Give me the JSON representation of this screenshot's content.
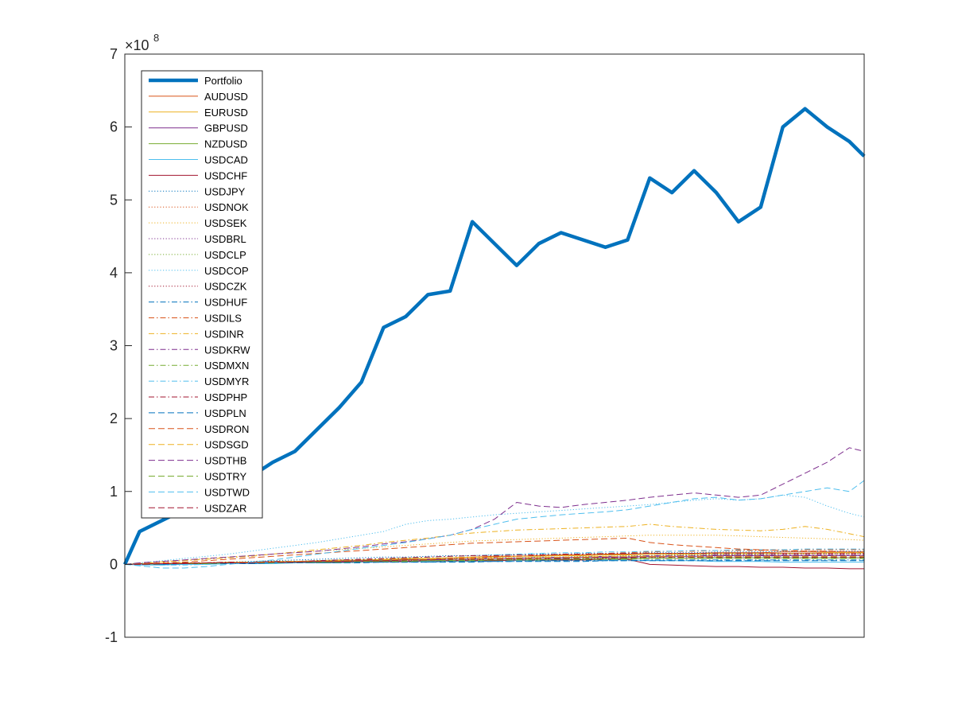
{
  "chart_data": {
    "type": "line",
    "title": "",
    "xlabel": "",
    "ylabel": "",
    "y_scale_exponent_label": "×10",
    "y_scale_exponent": "8",
    "ylim": [
      -100000000,
      700000000
    ],
    "xlim": [
      0,
      100
    ],
    "y_ticks": [
      {
        "value": -100000000,
        "label": "-1"
      },
      {
        "value": 0,
        "label": "0"
      },
      {
        "value": 100000000,
        "label": "1"
      },
      {
        "value": 200000000,
        "label": "2"
      },
      {
        "value": 300000000,
        "label": "3"
      },
      {
        "value": 400000000,
        "label": "4"
      },
      {
        "value": 500000000,
        "label": "5"
      },
      {
        "value": 600000000,
        "label": "6"
      },
      {
        "value": 700000000,
        "label": "7"
      }
    ],
    "grid": false,
    "legend_position": "top-left",
    "x": [
      0,
      2,
      5,
      8,
      11,
      14,
      17,
      20,
      23,
      26,
      29,
      32,
      35,
      38,
      41,
      44,
      47,
      50,
      53,
      56,
      59,
      62,
      65,
      68,
      71,
      74,
      77,
      80,
      83,
      86,
      89,
      92,
      95,
      98,
      100
    ],
    "series": [
      {
        "name": "Portfolio",
        "color": "#0072BD",
        "style": "solid",
        "width": 4.5,
        "values": [
          0,
          45,
          60,
          75,
          95,
          110,
          120,
          140,
          155,
          185,
          215,
          250,
          325,
          340,
          370,
          375,
          470,
          440,
          410,
          440,
          455,
          445,
          435,
          445,
          530,
          510,
          540,
          510,
          470,
          490,
          600,
          625,
          600,
          580,
          560
        ]
      },
      {
        "name": "AUDUSD",
        "color": "#D95319",
        "style": "solid",
        "width": 1,
        "values": [
          0,
          0,
          1,
          1,
          2,
          2,
          3,
          3,
          4,
          4,
          5,
          6,
          6,
          7,
          8,
          9,
          10,
          11,
          11,
          12,
          13,
          13,
          14,
          14,
          15,
          15,
          15,
          16,
          16,
          16,
          17,
          17,
          17,
          17,
          17
        ]
      },
      {
        "name": "EURUSD",
        "color": "#EDB120",
        "style": "solid",
        "width": 1,
        "values": [
          0,
          1,
          1,
          2,
          2,
          3,
          3,
          4,
          4,
          5,
          6,
          6,
          7,
          8,
          8,
          9,
          10,
          10,
          11,
          11,
          12,
          12,
          13,
          13,
          14,
          14,
          14,
          15,
          15,
          15,
          15,
          15,
          16,
          16,
          16
        ]
      },
      {
        "name": "GBPUSD",
        "color": "#7E2F8E",
        "style": "solid",
        "width": 1,
        "values": [
          0,
          0,
          1,
          1,
          1,
          2,
          2,
          3,
          3,
          4,
          4,
          5,
          5,
          6,
          6,
          7,
          7,
          8,
          8,
          9,
          9,
          10,
          10,
          10,
          11,
          11,
          11,
          12,
          12,
          12,
          12,
          12,
          12,
          12,
          12
        ]
      },
      {
        "name": "NZDUSD",
        "color": "#77AC30",
        "style": "solid",
        "width": 1,
        "values": [
          0,
          0,
          0,
          1,
          1,
          1,
          2,
          2,
          2,
          3,
          3,
          3,
          4,
          4,
          5,
          5,
          5,
          6,
          6,
          6,
          7,
          7,
          7,
          8,
          8,
          8,
          8,
          9,
          9,
          9,
          9,
          9,
          9,
          9,
          9
        ]
      },
      {
        "name": "USDCAD",
        "color": "#4DBEEE",
        "style": "solid",
        "width": 1,
        "values": [
          0,
          -1,
          -1,
          0,
          0,
          1,
          1,
          1,
          2,
          2,
          2,
          3,
          3,
          3,
          4,
          4,
          4,
          5,
          5,
          5,
          5,
          6,
          6,
          6,
          5,
          5,
          5,
          4,
          4,
          4,
          3,
          3,
          3,
          3,
          3
        ]
      },
      {
        "name": "USDCHF",
        "color": "#A2142F",
        "style": "solid",
        "width": 1,
        "values": [
          0,
          0,
          1,
          1,
          1,
          2,
          2,
          2,
          3,
          3,
          3,
          4,
          4,
          4,
          5,
          5,
          5,
          5,
          6,
          6,
          6,
          6,
          7,
          7,
          0,
          -1,
          -2,
          -3,
          -3,
          -4,
          -4,
          -5,
          -5,
          -6,
          -6
        ]
      },
      {
        "name": "USDJPY",
        "color": "#0072BD",
        "style": "dotted",
        "width": 1,
        "values": [
          0,
          1,
          1,
          2,
          2,
          3,
          4,
          5,
          6,
          7,
          8,
          9,
          10,
          10,
          11,
          12,
          12,
          13,
          13,
          14,
          14,
          15,
          15,
          15,
          16,
          16,
          16,
          17,
          17,
          17,
          18,
          18,
          18,
          18,
          18
        ]
      },
      {
        "name": "USDNOK",
        "color": "#D95319",
        "style": "dotted",
        "width": 1,
        "values": [
          0,
          0,
          1,
          1,
          2,
          2,
          3,
          3,
          4,
          4,
          5,
          5,
          6,
          6,
          7,
          7,
          8,
          8,
          9,
          9,
          10,
          10,
          11,
          11,
          12,
          12,
          12,
          13,
          13,
          13,
          14,
          14,
          14,
          14,
          14
        ]
      },
      {
        "name": "USDSEK",
        "color": "#EDB120",
        "style": "dotted",
        "width": 1,
        "values": [
          0,
          2,
          4,
          6,
          8,
          10,
          12,
          14,
          16,
          18,
          20,
          22,
          24,
          26,
          28,
          30,
          32,
          33,
          34,
          35,
          36,
          37,
          38,
          39,
          40,
          40,
          40,
          40,
          39,
          38,
          37,
          36,
          35,
          34,
          33
        ]
      },
      {
        "name": "USDBRL",
        "color": "#7E2F8E",
        "style": "dotted",
        "width": 1,
        "values": [
          0,
          0,
          1,
          1,
          1,
          2,
          2,
          2,
          3,
          3,
          3,
          4,
          4,
          4,
          5,
          5,
          6,
          6,
          7,
          7,
          8,
          8,
          9,
          9,
          10,
          10,
          10,
          11,
          11,
          11,
          11,
          12,
          12,
          12,
          12
        ]
      },
      {
        "name": "USDCLP",
        "color": "#77AC30",
        "style": "dotted",
        "width": 1,
        "values": [
          0,
          1,
          1,
          2,
          2,
          3,
          3,
          4,
          4,
          5,
          5,
          6,
          6,
          7,
          7,
          8,
          8,
          9,
          9,
          10,
          10,
          11,
          11,
          12,
          12,
          13,
          13,
          14,
          14,
          14,
          15,
          15,
          15,
          15,
          15
        ]
      },
      {
        "name": "USDCOP",
        "color": "#4DBEEE",
        "style": "dotted",
        "width": 1,
        "values": [
          0,
          2,
          5,
          8,
          11,
          14,
          18,
          22,
          26,
          30,
          35,
          40,
          45,
          55,
          60,
          62,
          65,
          68,
          70,
          72,
          74,
          76,
          78,
          80,
          82,
          85,
          88,
          90,
          88,
          90,
          95,
          92,
          80,
          70,
          65
        ]
      },
      {
        "name": "USDCZK",
        "color": "#A2142F",
        "style": "dotted",
        "width": 1,
        "values": [
          0,
          0,
          1,
          1,
          1,
          2,
          2,
          2,
          3,
          3,
          3,
          4,
          4,
          5,
          5,
          5,
          6,
          6,
          6,
          7,
          7,
          7,
          8,
          8,
          8,
          8,
          8,
          9,
          9,
          9,
          9,
          9,
          9,
          9,
          9
        ]
      },
      {
        "name": "USDHUF",
        "color": "#0072BD",
        "style": "dashdot",
        "width": 1,
        "values": [
          0,
          0,
          0,
          1,
          1,
          1,
          1,
          2,
          2,
          2,
          2,
          3,
          3,
          3,
          3,
          4,
          4,
          4,
          4,
          5,
          5,
          5,
          5,
          5,
          6,
          6,
          6,
          6,
          6,
          6,
          6,
          6,
          6,
          6,
          6
        ]
      },
      {
        "name": "USDILS",
        "color": "#D95319",
        "style": "dashdot",
        "width": 1,
        "values": [
          0,
          1,
          1,
          2,
          2,
          3,
          3,
          4,
          4,
          5,
          5,
          6,
          6,
          7,
          7,
          8,
          9,
          10,
          11,
          12,
          13,
          14,
          15,
          16,
          17,
          18,
          18,
          19,
          19,
          19,
          20,
          20,
          20,
          20,
          20
        ]
      },
      {
        "name": "USDINR",
        "color": "#EDB120",
        "style": "dashdot",
        "width": 1,
        "values": [
          0,
          1,
          3,
          5,
          7,
          9,
          11,
          14,
          17,
          20,
          23,
          26,
          30,
          33,
          36,
          40,
          43,
          45,
          47,
          48,
          49,
          50,
          51,
          52,
          55,
          52,
          50,
          48,
          47,
          46,
          48,
          52,
          48,
          42,
          38
        ]
      },
      {
        "name": "USDKRW",
        "color": "#7E2F8E",
        "style": "dashdot",
        "width": 1,
        "values": [
          0,
          0,
          1,
          1,
          2,
          2,
          3,
          3,
          4,
          4,
          5,
          5,
          6,
          6,
          7,
          7,
          8,
          8,
          9,
          9,
          10,
          10,
          11,
          11,
          12,
          12,
          12,
          13,
          13,
          13,
          13,
          13,
          13,
          13,
          13
        ]
      },
      {
        "name": "USDMXN",
        "color": "#77AC30",
        "style": "dashdot",
        "width": 1,
        "values": [
          0,
          0,
          1,
          1,
          1,
          2,
          2,
          3,
          3,
          3,
          4,
          4,
          5,
          5,
          5,
          6,
          6,
          6,
          7,
          7,
          7,
          8,
          8,
          8,
          9,
          9,
          9,
          9,
          9,
          9,
          9,
          9,
          9,
          9,
          9
        ]
      },
      {
        "name": "USDMYR",
        "color": "#4DBEEE",
        "style": "dashdot",
        "width": 1,
        "values": [
          0,
          0,
          -1,
          -1,
          0,
          1,
          2,
          3,
          4,
          5,
          6,
          7,
          8,
          9,
          10,
          11,
          12,
          13,
          14,
          15,
          16,
          16,
          17,
          17,
          18,
          18,
          19,
          19,
          20,
          20,
          20,
          21,
          21,
          21,
          21
        ]
      },
      {
        "name": "USDPHP",
        "color": "#A2142F",
        "style": "dashdot",
        "width": 1,
        "values": [
          0,
          1,
          1,
          2,
          2,
          3,
          3,
          4,
          4,
          5,
          6,
          7,
          8,
          9,
          10,
          11,
          12,
          12,
          13,
          13,
          14,
          14,
          14,
          15,
          15,
          15,
          15,
          15,
          15,
          15,
          15,
          15,
          15,
          15,
          15
        ]
      },
      {
        "name": "USDPLN",
        "color": "#0072BD",
        "style": "dashed",
        "width": 1,
        "values": [
          0,
          0,
          0,
          1,
          1,
          1,
          1,
          2,
          2,
          2,
          2,
          2,
          3,
          3,
          3,
          3,
          3,
          4,
          4,
          4,
          4,
          4,
          5,
          5,
          5,
          5,
          5,
          5,
          5,
          5,
          5,
          5,
          5,
          5,
          5
        ]
      },
      {
        "name": "USDRON",
        "color": "#D95319",
        "style": "dashed",
        "width": 1,
        "values": [
          0,
          1,
          2,
          3,
          5,
          7,
          9,
          11,
          13,
          15,
          17,
          19,
          21,
          23,
          25,
          27,
          29,
          30,
          31,
          32,
          33,
          34,
          35,
          36,
          30,
          27,
          25,
          23,
          21,
          20,
          19,
          18,
          18,
          17,
          17
        ]
      },
      {
        "name": "USDSGD",
        "color": "#EDB120",
        "style": "dashed",
        "width": 1,
        "values": [
          0,
          0,
          1,
          1,
          2,
          2,
          3,
          3,
          4,
          4,
          5,
          5,
          6,
          6,
          7,
          7,
          8,
          8,
          9,
          9,
          10,
          10,
          11,
          11,
          11,
          11,
          11,
          11,
          11,
          11,
          11,
          11,
          11,
          11,
          11
        ]
      },
      {
        "name": "USDTHB",
        "color": "#7E2F8E",
        "style": "dashed",
        "width": 1,
        "values": [
          0,
          2,
          4,
          6,
          8,
          10,
          12,
          14,
          16,
          18,
          21,
          24,
          28,
          31,
          35,
          40,
          48,
          62,
          85,
          80,
          78,
          82,
          85,
          88,
          92,
          95,
          98,
          95,
          92,
          95,
          110,
          125,
          140,
          160,
          155
        ]
      },
      {
        "name": "USDTRY",
        "color": "#77AC30",
        "style": "dashed",
        "width": 1,
        "values": [
          0,
          0,
          1,
          1,
          1,
          2,
          2,
          2,
          3,
          3,
          3,
          4,
          4,
          4,
          5,
          5,
          5,
          6,
          6,
          6,
          7,
          7,
          7,
          7,
          8,
          8,
          8,
          8,
          8,
          8,
          8,
          8,
          8,
          8,
          8
        ]
      },
      {
        "name": "USDTWD",
        "color": "#4DBEEE",
        "style": "dashed",
        "width": 1,
        "values": [
          0,
          -2,
          -5,
          -5,
          -3,
          0,
          3,
          6,
          10,
          14,
          18,
          22,
          26,
          30,
          35,
          40,
          48,
          55,
          62,
          65,
          68,
          70,
          72,
          75,
          80,
          85,
          90,
          92,
          88,
          90,
          95,
          100,
          105,
          100,
          115
        ]
      },
      {
        "name": "USDZAR",
        "color": "#A2142F",
        "style": "dashed",
        "width": 1,
        "values": [
          0,
          0,
          1,
          1,
          2,
          2,
          2,
          3,
          3,
          4,
          4,
          5,
          5,
          6,
          6,
          7,
          7,
          7,
          8,
          8,
          8,
          9,
          9,
          9,
          10,
          10,
          10,
          10,
          10,
          10,
          10,
          10,
          10,
          10,
          10
        ]
      }
    ]
  }
}
